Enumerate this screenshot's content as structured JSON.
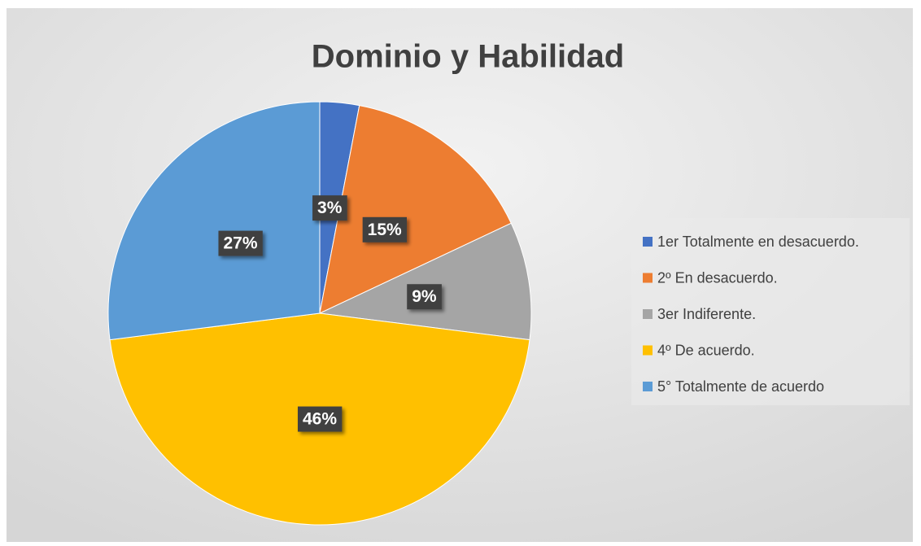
{
  "chart_data": {
    "type": "pie",
    "title": "Dominio y Habilidad",
    "categories": [
      "1er Totalmente en desacuerdo.",
      "2º En desacuerdo.",
      "3er Indiferente.",
      "4º De acuerdo.",
      "5° Totalmente de acuerdo"
    ],
    "values": [
      3,
      15,
      9,
      46,
      27
    ],
    "value_labels": [
      "3%",
      "15%",
      "9%",
      "46%",
      "27%"
    ],
    "colors": [
      "#4472c4",
      "#ed7d31",
      "#a5a5a5",
      "#ffc000",
      "#5b9bd5"
    ],
    "legend": "right"
  }
}
